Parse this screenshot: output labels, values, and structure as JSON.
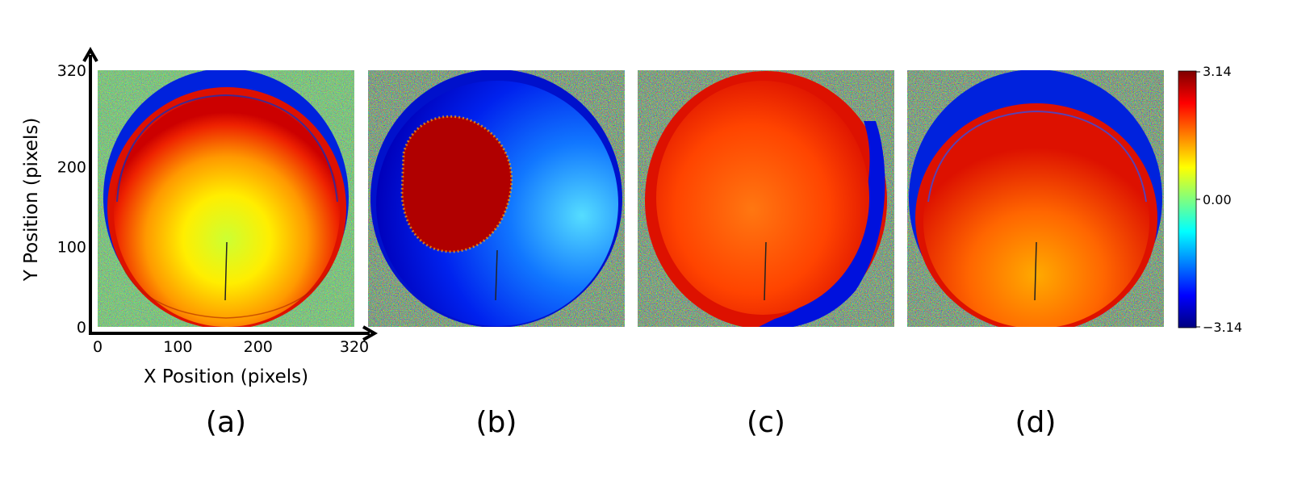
{
  "chart_data": {
    "type": "heatmap",
    "colormap": "jet",
    "x_axis": {
      "label": "X Position (pixels)",
      "ticks": [
        0,
        100,
        200,
        320
      ],
      "range": [
        0,
        320
      ]
    },
    "y_axis": {
      "label": "Y Position (pixels)",
      "ticks": [
        0,
        100,
        200,
        320
      ],
      "range": [
        0,
        320
      ]
    },
    "colorbar": {
      "ticks": [
        "3.14",
        "0.00",
        "−3.14"
      ],
      "range": [
        -3.14,
        3.14
      ]
    },
    "panels": [
      {
        "label": "(a)",
        "description_colors": "center phase near 0 (yellow/green) rising to ~3 (red) at edges, blue outer band at top"
      },
      {
        "label": "(b)",
        "description_colors": "mostly negative phase (blue/cyan) with dark-red region on left"
      },
      {
        "label": "(c)",
        "description_colors": "mostly red/orange (~2.5) with blue crescent bottom-right"
      },
      {
        "label": "(d)",
        "description_colors": "orange/red disk (~2) with blue band across top"
      }
    ],
    "background_color": "#7fff7f"
  }
}
